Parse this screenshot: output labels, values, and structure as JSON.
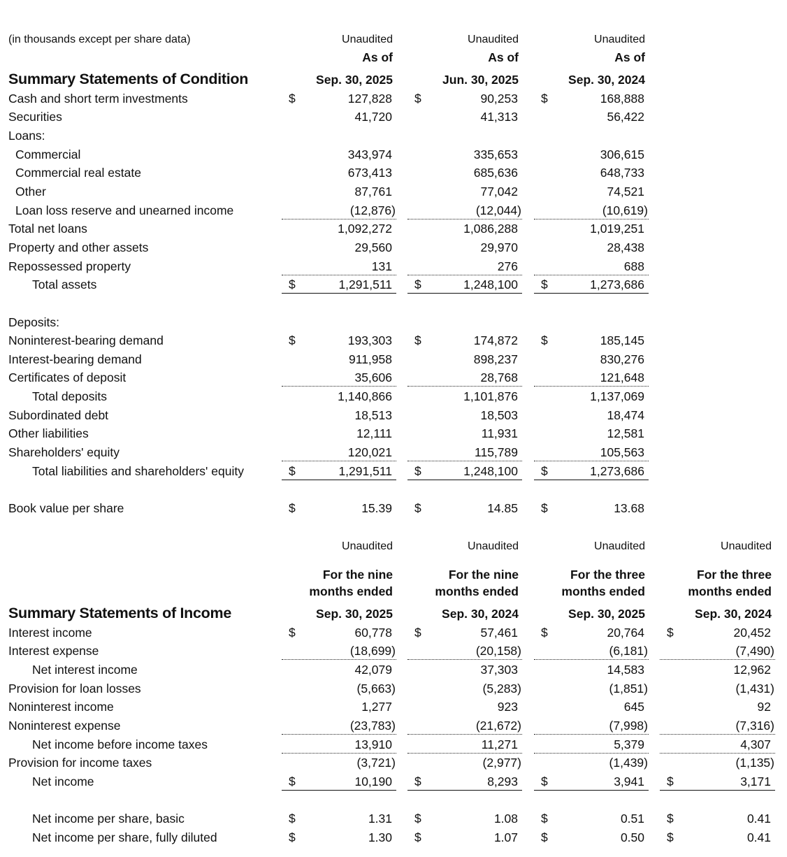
{
  "note": "(in thousands except per share data)",
  "condition": {
    "title": "Summary Statements of Condition",
    "columns": [
      {
        "status": "Unaudited",
        "caption": "As of",
        "date": "Sep. 30, 2025"
      },
      {
        "status": "Unaudited",
        "caption": "As of",
        "date": "Jun. 30, 2025"
      },
      {
        "status": "Unaudited",
        "caption": "As of",
        "date": "Sep. 30, 2024"
      }
    ],
    "rows": [
      {
        "label": "Cash and short term investments",
        "indent": 0,
        "dollar": true,
        "values": [
          "127,828",
          "90,253",
          "168,888"
        ]
      },
      {
        "label": "Securities",
        "indent": 0,
        "values": [
          "41,720",
          "41,313",
          "56,422"
        ]
      },
      {
        "label": "Loans:",
        "indent": 0,
        "values": []
      },
      {
        "label": "Commercial",
        "indent": 1,
        "values": [
          "343,974",
          "335,653",
          "306,615"
        ]
      },
      {
        "label": "Commercial real estate",
        "indent": 1,
        "values": [
          "673,413",
          "685,636",
          "648,733"
        ]
      },
      {
        "label": "Other",
        "indent": 1,
        "values": [
          "87,761",
          "77,042",
          "74,521"
        ]
      },
      {
        "label": "Loan loss reserve and unearned income",
        "indent": 1,
        "rule": "subtotal",
        "values": [
          "(12,876)",
          "(12,044)",
          "(10,619)"
        ]
      },
      {
        "label": "Total net loans",
        "indent": 0,
        "values": [
          "1,092,272",
          "1,086,288",
          "1,019,251"
        ]
      },
      {
        "label": "Property and other assets",
        "indent": 0,
        "values": [
          "29,560",
          "29,970",
          "28,438"
        ]
      },
      {
        "label": "Repossessed property",
        "indent": 0,
        "rule": "subtotal",
        "values": [
          "131",
          "276",
          "688"
        ]
      },
      {
        "label": "Total assets",
        "indent": 2,
        "dollar": true,
        "rule": "total",
        "values": [
          "1,291,511",
          "1,248,100",
          "1,273,686"
        ]
      },
      {
        "label": "Deposits:",
        "indent": 0,
        "values": []
      },
      {
        "label": "Noninterest-bearing demand",
        "indent": 0,
        "dollar": true,
        "values": [
          "193,303",
          "174,872",
          "185,145"
        ]
      },
      {
        "label": "Interest-bearing demand",
        "indent": 0,
        "values": [
          "911,958",
          "898,237",
          "830,276"
        ]
      },
      {
        "label": "Certificates of deposit",
        "indent": 0,
        "rule": "subtotal",
        "values": [
          "35,606",
          "28,768",
          "121,648"
        ]
      },
      {
        "label": "Total deposits",
        "indent": 2,
        "values": [
          "1,140,866",
          "1,101,876",
          "1,137,069"
        ]
      },
      {
        "label": "Subordinated debt",
        "indent": 0,
        "values": [
          "18,513",
          "18,503",
          "18,474"
        ]
      },
      {
        "label": "Other liabilities",
        "indent": 0,
        "values": [
          "12,111",
          "11,931",
          "12,581"
        ]
      },
      {
        "label": "Shareholders' equity",
        "indent": 0,
        "rule": "subtotal",
        "values": [
          "120,021",
          "115,789",
          "105,563"
        ]
      },
      {
        "label": "Total liabilities and shareholders' equity",
        "indent": 2,
        "dollar": true,
        "rule": "total",
        "values": [
          "1,291,511",
          "1,248,100",
          "1,273,686"
        ]
      },
      {
        "label": "Book value per share",
        "indent": 0,
        "dollar": true,
        "values": [
          "15.39",
          "14.85",
          "13.68"
        ]
      }
    ]
  },
  "income": {
    "title": "Summary Statements of Income",
    "columns": [
      {
        "status": "Unaudited",
        "caption1": "For the nine",
        "caption2": "months ended",
        "date": "Sep. 30, 2025"
      },
      {
        "status": "Unaudited",
        "caption1": "For the nine",
        "caption2": "months ended",
        "date": "Sep. 30, 2024"
      },
      {
        "status": "Unaudited",
        "caption1": "For the three",
        "caption2": "months ended",
        "date": "Sep. 30, 2025"
      },
      {
        "status": "Unaudited",
        "caption1": "For the three",
        "caption2": "months ended",
        "date": "Sep. 30, 2024"
      }
    ],
    "rows": [
      {
        "label": "Interest income",
        "indent": 0,
        "dollar": true,
        "values": [
          "60,778",
          "57,461",
          "20,764",
          "20,452"
        ]
      },
      {
        "label": "Interest expense",
        "indent": 0,
        "rule": "subtotal",
        "values": [
          "(18,699)",
          "(20,158)",
          "(6,181)",
          "(7,490)"
        ]
      },
      {
        "label": "Net interest income",
        "indent": 2,
        "values": [
          "42,079",
          "37,303",
          "14,583",
          "12,962"
        ]
      },
      {
        "label": "Provision for loan losses",
        "indent": 0,
        "values": [
          "(5,663)",
          "(5,283)",
          "(1,851)",
          "(1,431)"
        ]
      },
      {
        "label": "Noninterest income",
        "indent": 0,
        "values": [
          "1,277",
          "923",
          "645",
          "92"
        ]
      },
      {
        "label": "Noninterest expense",
        "indent": 0,
        "rule": "subtotal",
        "values": [
          "(23,783)",
          "(21,672)",
          "(7,998)",
          "(7,316)"
        ]
      },
      {
        "label": "Net income before income taxes",
        "indent": 2,
        "rule": "subtotal",
        "values": [
          "13,910",
          "11,271",
          "5,379",
          "4,307"
        ]
      },
      {
        "label": "Provision for income taxes",
        "indent": 0,
        "values": [
          "(3,721)",
          "(2,977)",
          "(1,439)",
          "(1,135)"
        ]
      },
      {
        "label": "Net income",
        "indent": 2,
        "dollar": true,
        "rule": "total",
        "values": [
          "10,190",
          "8,293",
          "3,941",
          "3,171"
        ]
      },
      {
        "label": "Net income per share, basic",
        "indent": 2,
        "dollar": true,
        "values": [
          "1.31",
          "1.08",
          "0.51",
          "0.41"
        ]
      },
      {
        "label": "Net income per share, fully diluted",
        "indent": 2,
        "dollar": true,
        "values": [
          "1.30",
          "1.07",
          "0.50",
          "0.41"
        ]
      }
    ],
    "currency_symbol": "$"
  }
}
